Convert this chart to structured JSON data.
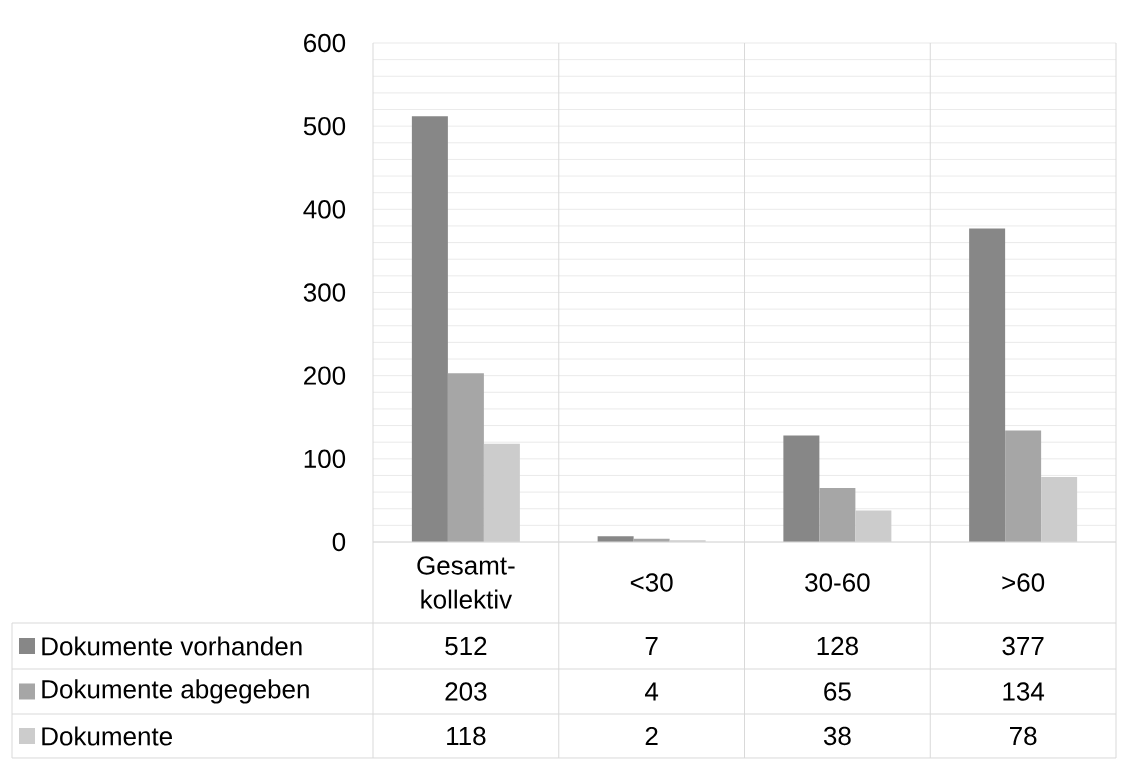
{
  "chart_data": {
    "type": "bar",
    "categories": [
      "Gesamt-kollektiv",
      "<30",
      "30-60",
      ">60"
    ],
    "series": [
      {
        "name": "Dokumente vorhanden",
        "color": "#878787",
        "values": [
          512,
          7,
          128,
          377
        ]
      },
      {
        "name": "Dokumente abgegeben",
        "color": "#a6a6a6",
        "values": [
          203,
          4,
          65,
          134
        ]
      },
      {
        "name": "Dokumente",
        "color": "#cccccc",
        "values": [
          118,
          2,
          38,
          78
        ]
      }
    ],
    "ylim": [
      0,
      600
    ],
    "yticks": [
      0,
      {
        "value": 20,
        "label": null
      },
      {
        "value": 40,
        "label": null
      },
      {
        "value": 60,
        "label": null
      },
      {
        "value": 80,
        "label": null
      },
      100,
      {
        "value": 120,
        "label": null
      },
      {
        "value": 140,
        "label": null
      },
      {
        "value": 160,
        "label": null
      },
      {
        "value": 180,
        "label": null
      },
      200,
      {
        "value": 220,
        "label": null
      },
      {
        "value": 240,
        "label": null
      },
      {
        "value": 260,
        "label": null
      },
      {
        "value": 280,
        "label": null
      },
      300,
      {
        "value": 320,
        "label": null
      },
      {
        "value": 340,
        "label": null
      },
      {
        "value": 360,
        "label": null
      },
      {
        "value": 380,
        "label": null
      },
      400,
      {
        "value": 420,
        "label": null
      },
      {
        "value": 440,
        "label": null
      },
      {
        "value": 460,
        "label": null
      },
      {
        "value": 480,
        "label": null
      },
      500,
      {
        "value": 520,
        "label": null
      },
      {
        "value": 540,
        "label": null
      },
      {
        "value": 560,
        "label": null
      },
      {
        "value": 580,
        "label": null
      },
      600
    ],
    "grid": "y",
    "legend": "bottom",
    "data_labels": true
  }
}
